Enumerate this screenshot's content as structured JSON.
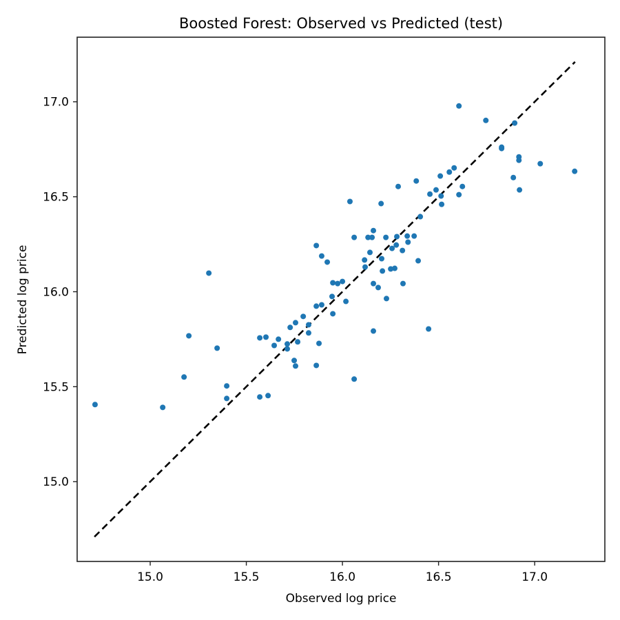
{
  "chart_data": {
    "type": "scatter",
    "title": "Boosted Forest: Observed vs Predicted (test)",
    "xlabel": "Observed log price",
    "ylabel": "Predicted log price",
    "xlim": [
      14.62,
      17.365
    ],
    "ylim": [
      14.58,
      17.34
    ],
    "xticks": [
      15.0,
      15.5,
      16.0,
      16.5,
      17.0
    ],
    "xtick_labels": [
      "15.0",
      "15.5",
      "16.0",
      "16.5",
      "17.0"
    ],
    "yticks": [
      15.0,
      15.5,
      16.0,
      16.5,
      17.0
    ],
    "ytick_labels": [
      "15.0",
      "15.5",
      "16.0",
      "16.5",
      "17.0"
    ],
    "grid": false,
    "legend": null,
    "marker_color": "#1f77b4",
    "reference_line": {
      "style": "dashed",
      "color": "#000000",
      "from": [
        14.71,
        14.71
      ],
      "to": [
        17.21,
        17.21
      ],
      "label": "y = x"
    },
    "series": [
      {
        "name": "test",
        "points": [
          [
            14.713,
            15.406
          ],
          [
            15.065,
            15.391
          ],
          [
            15.176,
            15.551
          ],
          [
            15.201,
            15.768
          ],
          [
            15.305,
            16.098
          ],
          [
            15.348,
            15.703
          ],
          [
            15.398,
            15.504
          ],
          [
            15.398,
            15.438
          ],
          [
            15.57,
            15.757
          ],
          [
            15.602,
            15.761
          ],
          [
            15.57,
            15.446
          ],
          [
            15.613,
            15.453
          ],
          [
            15.645,
            15.717
          ],
          [
            15.667,
            15.75
          ],
          [
            15.713,
            15.725
          ],
          [
            15.713,
            15.699
          ],
          [
            15.728,
            15.812
          ],
          [
            15.756,
            15.837
          ],
          [
            15.767,
            15.736
          ],
          [
            15.749,
            15.638
          ],
          [
            15.756,
            15.609
          ],
          [
            15.796,
            15.87
          ],
          [
            15.824,
            15.826
          ],
          [
            15.824,
            15.783
          ],
          [
            15.864,
            15.924
          ],
          [
            15.892,
            15.931
          ],
          [
            15.878,
            15.728
          ],
          [
            15.864,
            15.612
          ],
          [
            15.864,
            16.243
          ],
          [
            15.892,
            16.188
          ],
          [
            15.921,
            16.156
          ],
          [
            15.95,
            16.047
          ],
          [
            15.975,
            16.043
          ],
          [
            16.0,
            16.054
          ],
          [
            15.946,
            15.975
          ],
          [
            15.95,
            15.884
          ],
          [
            16.018,
            15.949
          ],
          [
            16.061,
            15.54
          ],
          [
            16.061,
            16.286
          ],
          [
            16.039,
            16.475
          ],
          [
            16.133,
            16.286
          ],
          [
            16.154,
            16.286
          ],
          [
            16.161,
            16.322
          ],
          [
            16.226,
            16.286
          ],
          [
            16.283,
            16.29
          ],
          [
            16.337,
            16.293
          ],
          [
            16.373,
            16.293
          ],
          [
            16.341,
            16.261
          ],
          [
            16.28,
            16.246
          ],
          [
            16.258,
            16.228
          ],
          [
            16.312,
            16.217
          ],
          [
            16.143,
            16.207
          ],
          [
            16.115,
            16.167
          ],
          [
            16.118,
            16.13
          ],
          [
            16.204,
            16.174
          ],
          [
            16.208,
            16.109
          ],
          [
            16.251,
            16.12
          ],
          [
            16.272,
            16.123
          ],
          [
            16.394,
            16.163
          ],
          [
            16.161,
            16.043
          ],
          [
            16.186,
            16.022
          ],
          [
            16.315,
            16.043
          ],
          [
            16.229,
            15.964
          ],
          [
            16.161,
            15.793
          ],
          [
            16.448,
            15.804
          ],
          [
            16.201,
            16.464
          ],
          [
            16.29,
            16.554
          ],
          [
            16.384,
            16.583
          ],
          [
            16.405,
            16.395
          ],
          [
            16.455,
            16.514
          ],
          [
            16.487,
            16.536
          ],
          [
            16.509,
            16.609
          ],
          [
            16.513,
            16.504
          ],
          [
            16.516,
            16.46
          ],
          [
            16.556,
            16.63
          ],
          [
            16.581,
            16.652
          ],
          [
            16.606,
            16.511
          ],
          [
            16.624,
            16.554
          ],
          [
            16.606,
            16.978
          ],
          [
            16.746,
            16.902
          ],
          [
            16.896,
            16.888
          ],
          [
            16.828,
            16.761
          ],
          [
            16.828,
            16.754
          ],
          [
            16.918,
            16.71
          ],
          [
            16.918,
            16.692
          ],
          [
            17.029,
            16.674
          ],
          [
            17.208,
            16.634
          ],
          [
            16.889,
            16.601
          ],
          [
            16.921,
            16.536
          ]
        ]
      }
    ]
  }
}
